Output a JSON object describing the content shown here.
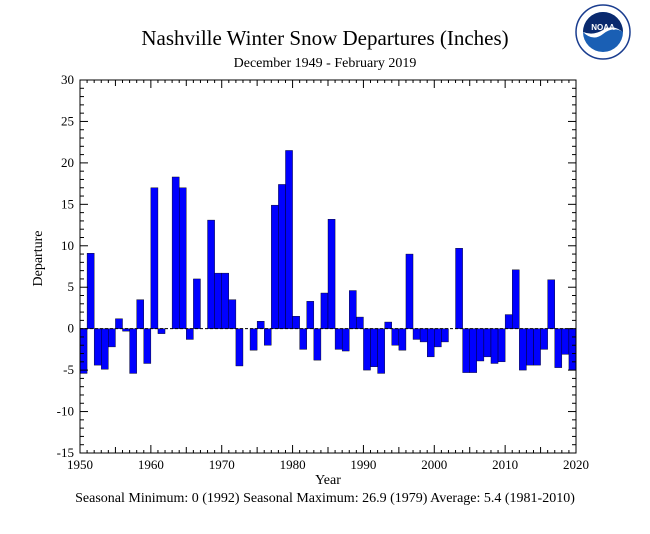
{
  "header": {
    "title": "Nashville Winter Snow Departures (Inches)",
    "subtitle": "December 1949 - February 2019"
  },
  "footer": {
    "stats": "Seasonal Minimum: 0 (1992) Seasonal Maximum: 26.9 (1979) Average: 5.4 (1981-2010)"
  },
  "logo": {
    "text": "NOAA",
    "icon": "noaa-logo"
  },
  "colors": {
    "bar": "#0000ff",
    "axis": "#000000",
    "zero_line": "#000000"
  },
  "chart_data": {
    "type": "bar",
    "title": "Nashville Winter Snow Departures (Inches)",
    "subtitle": "December 1949 - February 2019",
    "xlabel": "Year",
    "ylabel": "Departure",
    "xlim": [
      1950,
      2020
    ],
    "ylim": [
      -15,
      30
    ],
    "xticks": [
      1950,
      1960,
      1970,
      1980,
      1990,
      2000,
      2010,
      2020
    ],
    "yticks": [
      -15,
      -10,
      -5,
      0,
      5,
      10,
      15,
      20,
      25,
      30
    ],
    "grid": false,
    "legend": "none",
    "x": [
      1950,
      1951,
      1952,
      1953,
      1954,
      1955,
      1956,
      1957,
      1958,
      1959,
      1960,
      1961,
      1962,
      1963,
      1964,
      1965,
      1966,
      1967,
      1968,
      1969,
      1970,
      1971,
      1972,
      1973,
      1974,
      1975,
      1976,
      1977,
      1978,
      1979,
      1980,
      1981,
      1982,
      1983,
      1984,
      1985,
      1986,
      1987,
      1988,
      1989,
      1990,
      1991,
      1992,
      1993,
      1994,
      1995,
      1996,
      1997,
      1998,
      1999,
      2000,
      2001,
      2002,
      2003,
      2004,
      2005,
      2006,
      2007,
      2008,
      2009,
      2010,
      2011,
      2012,
      2013,
      2014,
      2015,
      2016,
      2017,
      2018,
      2019
    ],
    "values": [
      -5.4,
      9.1,
      -4.4,
      -4.9,
      -2.2,
      1.2,
      -0.3,
      -5.4,
      3.5,
      -4.2,
      17.0,
      -0.6,
      0.0,
      18.3,
      17.0,
      -1.3,
      6.0,
      0.0,
      13.1,
      6.7,
      6.7,
      3.5,
      -4.5,
      0.0,
      -2.6,
      0.9,
      -2.0,
      14.9,
      17.4,
      21.5,
      1.5,
      -2.5,
      3.3,
      -3.8,
      4.3,
      13.2,
      -2.5,
      -2.7,
      4.6,
      1.4,
      -5.0,
      -4.6,
      -5.4,
      0.8,
      -2.0,
      -2.6,
      9.0,
      -1.3,
      -1.6,
      -3.4,
      -2.2,
      -1.6,
      0.0,
      9.7,
      -5.3,
      -5.3,
      -3.9,
      -3.4,
      -4.2,
      -4.0,
      1.7,
      7.1,
      -5.0,
      -4.4,
      -4.4,
      -2.5,
      5.9,
      -4.7,
      -3.1,
      -5.0
    ]
  }
}
